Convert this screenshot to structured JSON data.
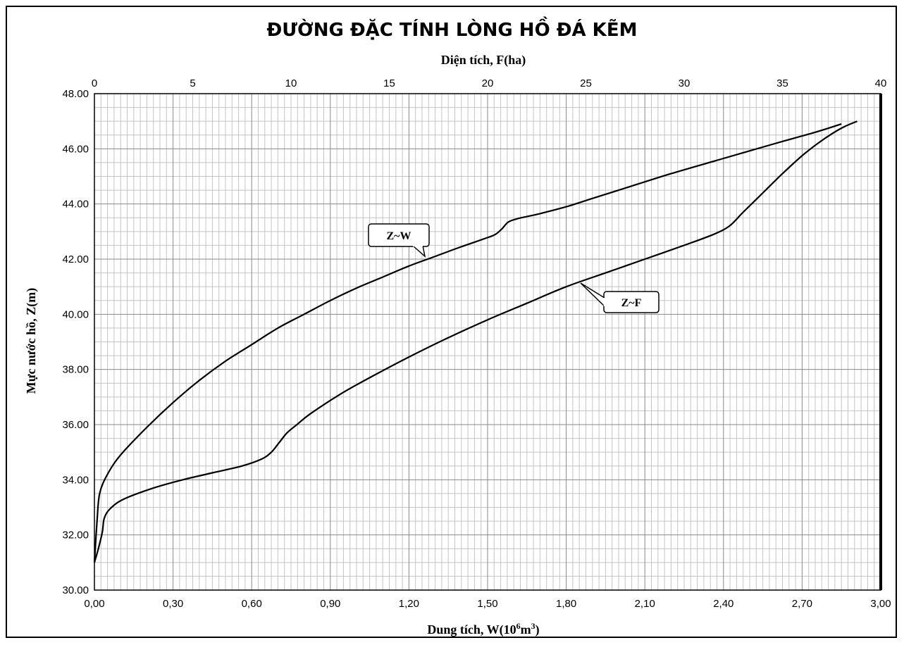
{
  "chart_data": {
    "title": "ĐƯỜNG ĐẶC TÍNH LÒNG HỒ ĐÁ KẼM",
    "type": "line",
    "grid": true,
    "y_axis": {
      "label": "Mực nước hồ, Z(m)",
      "range": [
        30,
        48
      ],
      "ticks": [
        "30.00",
        "32.00",
        "34.00",
        "36.00",
        "38.00",
        "40.00",
        "42.00",
        "44.00",
        "46.00",
        "48.00"
      ]
    },
    "x_bottom_axis": {
      "label_prefix": "Dung tích, W(10",
      "label_sup1": "6",
      "label_mid": "m",
      "label_sup2": "3",
      "label_suffix": ")",
      "range": [
        0,
        3.0
      ],
      "ticks": [
        "0,00",
        "0,30",
        "0,60",
        "0,90",
        "1,20",
        "1,50",
        "1,80",
        "2,10",
        "2,40",
        "2,70",
        "3,00"
      ]
    },
    "x_top_axis": {
      "label": "Diện tích, F(ha)",
      "range": [
        0,
        40
      ],
      "ticks": [
        "0",
        "5",
        "10",
        "15",
        "20",
        "25",
        "30",
        "35",
        "40"
      ]
    },
    "series": [
      {
        "name": "Z~W",
        "axis": "bottom",
        "points": [
          [
            0.0,
            31.0
          ],
          [
            0.01,
            32.5
          ],
          [
            0.02,
            33.5
          ],
          [
            0.05,
            34.2
          ],
          [
            0.1,
            34.9
          ],
          [
            0.2,
            35.9
          ],
          [
            0.3,
            36.8
          ],
          [
            0.4,
            37.6
          ],
          [
            0.5,
            38.3
          ],
          [
            0.6,
            38.9
          ],
          [
            0.7,
            39.5
          ],
          [
            0.8,
            40.0
          ],
          [
            0.9,
            40.5
          ],
          [
            1.0,
            40.95
          ],
          [
            1.1,
            41.35
          ],
          [
            1.2,
            41.75
          ],
          [
            1.3,
            42.1
          ],
          [
            1.4,
            42.45
          ],
          [
            1.5,
            42.78
          ],
          [
            1.53,
            42.9
          ],
          [
            1.555,
            43.1
          ],
          [
            1.58,
            43.35
          ],
          [
            1.62,
            43.48
          ],
          [
            1.7,
            43.65
          ],
          [
            1.8,
            43.9
          ],
          [
            1.9,
            44.2
          ],
          [
            2.0,
            44.5
          ],
          [
            2.2,
            45.1
          ],
          [
            2.4,
            45.65
          ],
          [
            2.6,
            46.2
          ],
          [
            2.75,
            46.6
          ],
          [
            2.85,
            46.9
          ]
        ]
      },
      {
        "name": "Z~F",
        "axis": "top",
        "points": [
          [
            0.0,
            31.0
          ],
          [
            0.2,
            31.5
          ],
          [
            0.4,
            32.1
          ],
          [
            0.5,
            32.6
          ],
          [
            0.8,
            32.95
          ],
          [
            1.5,
            33.3
          ],
          [
            3.0,
            33.7
          ],
          [
            4.5,
            34.0
          ],
          [
            6.0,
            34.25
          ],
          [
            7.5,
            34.5
          ],
          [
            8.5,
            34.75
          ],
          [
            9.0,
            35.0
          ],
          [
            9.4,
            35.35
          ],
          [
            9.8,
            35.7
          ],
          [
            10.3,
            36.0
          ],
          [
            11.0,
            36.4
          ],
          [
            12.5,
            37.1
          ],
          [
            14.0,
            37.7
          ],
          [
            16.0,
            38.45
          ],
          [
            18.0,
            39.15
          ],
          [
            20.0,
            39.8
          ],
          [
            22.0,
            40.4
          ],
          [
            24.0,
            41.0
          ],
          [
            26.0,
            41.5
          ],
          [
            28.0,
            42.0
          ],
          [
            30.0,
            42.5
          ],
          [
            31.5,
            42.9
          ],
          [
            32.3,
            43.2
          ],
          [
            33.0,
            43.7
          ],
          [
            34.0,
            44.4
          ],
          [
            35.0,
            45.1
          ],
          [
            36.0,
            45.75
          ],
          [
            37.0,
            46.3
          ],
          [
            38.0,
            46.75
          ],
          [
            38.8,
            47.0
          ]
        ]
      }
    ],
    "annotations": [
      "Z~W",
      "Z~F"
    ]
  }
}
